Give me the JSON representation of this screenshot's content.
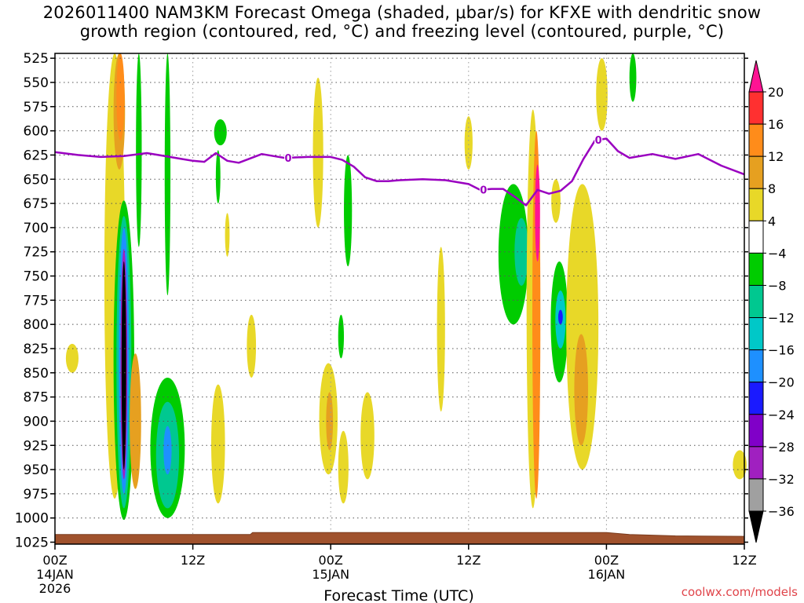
{
  "title_line1": "2026011400 NAM3KM Forecast Omega (shaded, μbar/s) for KFXE with dendritic snow",
  "title_line2": "growth region (contoured, red, °C) and freezing level (contoured, purple, °C)",
  "credit": "coolwx.com/models",
  "chart_data": {
    "type": "heatmap",
    "xlabel": "Forecast Time (UTC)",
    "x_range_hours": [
      0,
      60
    ],
    "x_ticks": [
      {
        "hour": 0,
        "label": "00Z",
        "date": "14JAN",
        "year": "2026"
      },
      {
        "hour": 12,
        "label": "12Z",
        "date": "",
        "year": ""
      },
      {
        "hour": 24,
        "label": "00Z",
        "date": "15JAN",
        "year": ""
      },
      {
        "hour": 36,
        "label": "12Z",
        "date": "",
        "year": ""
      },
      {
        "hour": 48,
        "label": "00Z",
        "date": "16JAN",
        "year": ""
      },
      {
        "hour": 60,
        "label": "12Z",
        "date": "",
        "year": ""
      }
    ],
    "ylabel": "",
    "y_ticks": [
      525,
      550,
      575,
      600,
      625,
      650,
      675,
      700,
      725,
      750,
      775,
      800,
      825,
      850,
      875,
      900,
      925,
      950,
      975,
      1000,
      1025
    ],
    "y_range_hpa": [
      520,
      1027
    ],
    "grid": true,
    "colorbar": {
      "labels": [
        "20",
        "16",
        "12",
        "8",
        "4",
        "−4",
        "−8",
        "−12",
        "−16",
        "−20",
        "−24",
        "−28",
        "−32",
        "−36"
      ],
      "levels": [
        20,
        16,
        12,
        8,
        4,
        -4,
        -8,
        -12,
        -16,
        -20,
        -24,
        -28,
        -32,
        -36
      ],
      "colors": [
        "#ff1493",
        "#ff3030",
        "#ff8c1a",
        "#e6a020",
        "#e8d828",
        "#ffffff",
        "#00cc00",
        "#00c890",
        "#00c8c8",
        "#1e90ff",
        "#1a1aff",
        "#8000c8",
        "#a020c0",
        "#a0a0a0",
        "#000000"
      ]
    },
    "freezing_level": {
      "label": "0",
      "color": "#9a00c0",
      "hours": [
        0,
        2,
        4,
        6,
        8,
        9,
        10,
        11,
        12,
        13,
        14,
        15,
        16,
        18,
        19,
        20,
        22,
        24,
        25,
        26,
        27,
        28,
        29,
        30,
        32,
        34,
        36,
        37,
        38,
        39,
        40,
        41,
        42,
        43,
        44,
        45,
        46,
        47,
        48,
        49,
        50,
        52,
        54,
        56,
        58,
        60
      ],
      "pressure_hpa": [
        622,
        625,
        627,
        626,
        623,
        625,
        627,
        629,
        631,
        632,
        623,
        631,
        633,
        624,
        626,
        628,
        627,
        627,
        630,
        637,
        648,
        652,
        652,
        651,
        650,
        651,
        655,
        661,
        660,
        660,
        668,
        677,
        661,
        665,
        662,
        652,
        629,
        610,
        608,
        621,
        628,
        624,
        629,
        624,
        636,
        645
      ],
      "label_hours": [
        20.3,
        37.3,
        47.3
      ]
    },
    "omega_regions": [
      {
        "level": 4,
        "hour": 5.2,
        "p_from": 520,
        "p_to": 980,
        "half_width": 0.9
      },
      {
        "level": 8,
        "hour": 5.6,
        "p_from": 520,
        "p_to": 640,
        "half_width": 0.5
      },
      {
        "level": 12,
        "hour": 5.7,
        "p_from": 520,
        "p_to": 610,
        "half_width": 0.35
      },
      {
        "level": -4,
        "hour": 6.0,
        "p_from": 672,
        "p_to": 1002,
        "half_width": 0.9
      },
      {
        "level": -8,
        "hour": 6.0,
        "p_from": 688,
        "p_to": 990,
        "half_width": 0.65
      },
      {
        "level": -16,
        "hour": 6.0,
        "p_from": 700,
        "p_to": 975,
        "half_width": 0.45
      },
      {
        "level": -28,
        "hour": 6.0,
        "p_from": 722,
        "p_to": 960,
        "half_width": 0.3
      },
      {
        "level": -36,
        "hour": 6.0,
        "p_from": 735,
        "p_to": 950,
        "half_width": 0.2
      },
      {
        "level": 8,
        "hour": 7.0,
        "p_from": 830,
        "p_to": 970,
        "half_width": 0.5
      },
      {
        "level": -4,
        "hour": 7.3,
        "p_from": 520,
        "p_to": 720,
        "half_width": 0.25
      },
      {
        "level": -4,
        "hour": 9.8,
        "p_from": 855,
        "p_to": 1000,
        "half_width": 1.5
      },
      {
        "level": -8,
        "hour": 9.8,
        "p_from": 880,
        "p_to": 990,
        "half_width": 1.0
      },
      {
        "level": -16,
        "hour": 9.8,
        "p_from": 905,
        "p_to": 955,
        "half_width": 0.35
      },
      {
        "level": -4,
        "hour": 9.8,
        "p_from": 520,
        "p_to": 770,
        "half_width": 0.25
      },
      {
        "level": 4,
        "hour": 14.2,
        "p_from": 862,
        "p_to": 985,
        "half_width": 0.6
      },
      {
        "level": -4,
        "hour": 14.4,
        "p_from": 588,
        "p_to": 615,
        "half_width": 0.55
      },
      {
        "level": -4,
        "hour": 14.2,
        "p_from": 620,
        "p_to": 675,
        "half_width": 0.2
      },
      {
        "level": 4,
        "hour": 15.0,
        "p_from": 685,
        "p_to": 730,
        "half_width": 0.2
      },
      {
        "level": 4,
        "hour": 17.1,
        "p_from": 790,
        "p_to": 855,
        "half_width": 0.4
      },
      {
        "level": 4,
        "hour": 22.9,
        "p_from": 545,
        "p_to": 700,
        "half_width": 0.45
      },
      {
        "level": 4,
        "hour": 23.8,
        "p_from": 840,
        "p_to": 955,
        "half_width": 0.8
      },
      {
        "level": 8,
        "hour": 23.9,
        "p_from": 870,
        "p_to": 930,
        "half_width": 0.3
      },
      {
        "level": -4,
        "hour": 24.9,
        "p_from": 790,
        "p_to": 835,
        "half_width": 0.25
      },
      {
        "level": -4,
        "hour": 25.5,
        "p_from": 625,
        "p_to": 740,
        "half_width": 0.35
      },
      {
        "level": 4,
        "hour": 25.1,
        "p_from": 910,
        "p_to": 985,
        "half_width": 0.45
      },
      {
        "level": 4,
        "hour": 27.2,
        "p_from": 870,
        "p_to": 960,
        "half_width": 0.6
      },
      {
        "level": 4,
        "hour": 33.6,
        "p_from": 720,
        "p_to": 890,
        "half_width": 0.35
      },
      {
        "level": 4,
        "hour": 36.0,
        "p_from": 585,
        "p_to": 640,
        "half_width": 0.35
      },
      {
        "level": -4,
        "hour": 39.9,
        "p_from": 655,
        "p_to": 800,
        "half_width": 1.3
      },
      {
        "level": -8,
        "hour": 40.6,
        "p_from": 690,
        "p_to": 760,
        "half_width": 0.6
      },
      {
        "level": 4,
        "hour": 41.6,
        "p_from": 578,
        "p_to": 990,
        "half_width": 0.55
      },
      {
        "level": 12,
        "hour": 41.9,
        "p_from": 600,
        "p_to": 980,
        "half_width": 0.35
      },
      {
        "level": 20,
        "hour": 42.0,
        "p_from": 635,
        "p_to": 735,
        "half_width": 0.22
      },
      {
        "level": 4,
        "hour": 43.6,
        "p_from": 650,
        "p_to": 695,
        "half_width": 0.4
      },
      {
        "level": -4,
        "hour": 43.9,
        "p_from": 735,
        "p_to": 860,
        "half_width": 0.75
      },
      {
        "level": -12,
        "hour": 44.0,
        "p_from": 765,
        "p_to": 825,
        "half_width": 0.45
      },
      {
        "level": -20,
        "hour": 44.0,
        "p_from": 785,
        "p_to": 800,
        "half_width": 0.2
      },
      {
        "level": 4,
        "hour": 45.9,
        "p_from": 655,
        "p_to": 950,
        "half_width": 1.4
      },
      {
        "level": 8,
        "hour": 45.8,
        "p_from": 810,
        "p_to": 925,
        "half_width": 0.6
      },
      {
        "level": 4,
        "hour": 47.6,
        "p_from": 525,
        "p_to": 600,
        "half_width": 0.5
      },
      {
        "level": -4,
        "hour": 50.3,
        "p_from": 520,
        "p_to": 570,
        "half_width": 0.3
      },
      {
        "level": 4,
        "hour": 59.6,
        "p_from": 930,
        "p_to": 960,
        "half_width": 0.6
      },
      {
        "level": 4,
        "hour": 1.5,
        "p_from": 820,
        "p_to": 850,
        "half_width": 0.55
      }
    ]
  }
}
